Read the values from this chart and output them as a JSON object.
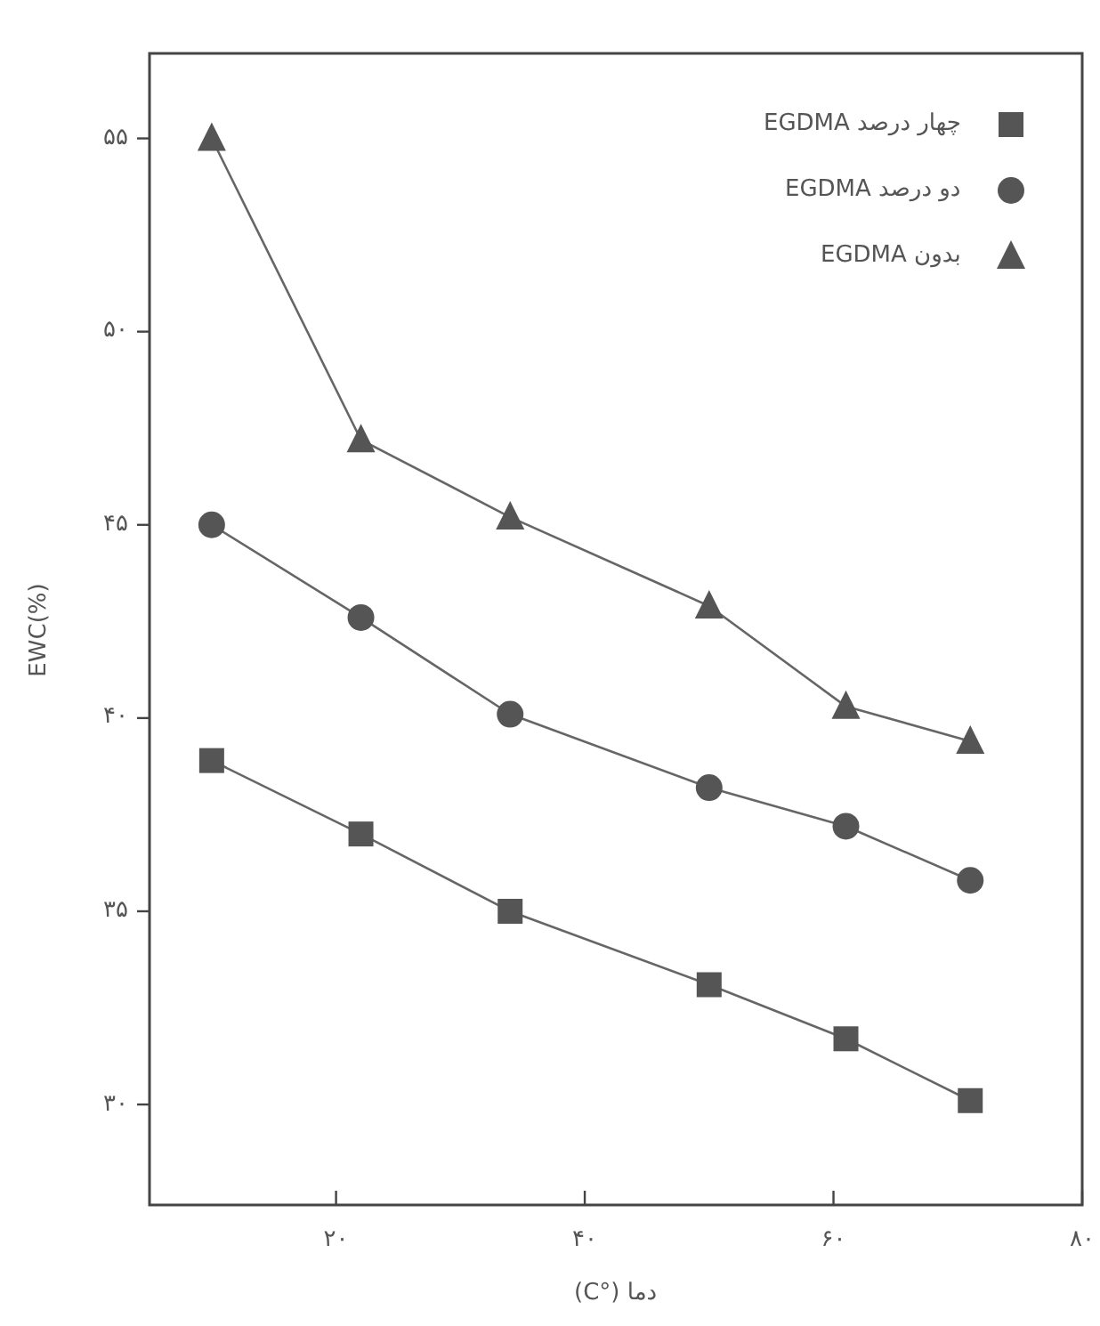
{
  "chart_data": {
    "type": "line",
    "xlabel": "دما (°C)",
    "ylabel": "EWC(%)",
    "xlim": [
      5,
      80
    ],
    "ylim": [
      27.4,
      57.2
    ],
    "xticks": [
      {
        "value": 20,
        "label": "۲۰"
      },
      {
        "value": 40,
        "label": "۴۰"
      },
      {
        "value": 60,
        "label": "۶۰"
      },
      {
        "value": 80,
        "label": "۸۰"
      }
    ],
    "yticks": [
      {
        "value": 30,
        "label": "۳۰"
      },
      {
        "value": 35,
        "label": "۳۵"
      },
      {
        "value": 40,
        "label": "۴۰"
      },
      {
        "value": 45,
        "label": "۴۵"
      },
      {
        "value": 50,
        "label": "۵۰"
      },
      {
        "value": 55,
        "label": "۵۵"
      }
    ],
    "x": [
      10,
      22,
      34,
      50,
      61,
      71
    ],
    "series": [
      {
        "name": "چهار درصد EGDMA",
        "color": "#555555",
        "marker": "square",
        "values": [
          38.9,
          37.0,
          35.0,
          33.1,
          31.7,
          30.1
        ]
      },
      {
        "name": "دو درصد EGDMA",
        "color": "#555555",
        "marker": "circle",
        "values": [
          45.0,
          42.6,
          40.1,
          38.2,
          37.2,
          35.8
        ]
      },
      {
        "name": "بدون EGDMA",
        "color": "#555555",
        "marker": "triangle",
        "values": [
          55.0,
          47.2,
          45.2,
          42.9,
          40.3,
          39.4
        ]
      }
    ],
    "legend": "top right",
    "grid": false,
    "line_style": "solid"
  }
}
